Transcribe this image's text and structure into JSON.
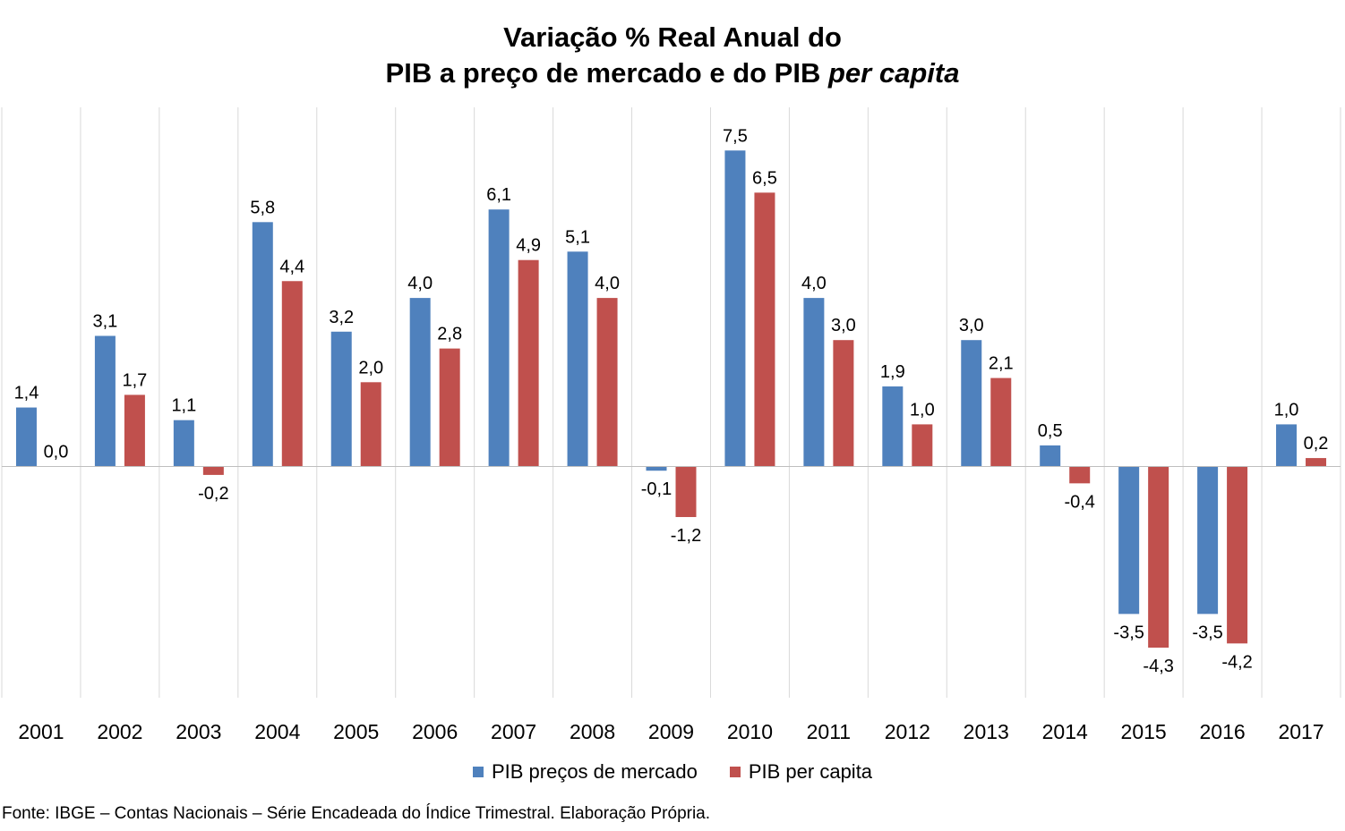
{
  "chart_data": {
    "type": "bar",
    "title_line1": "Variação % Real Anual do",
    "title_line2_prefix": "PIB a preço de mercado e do PIB ",
    "title_line2_italic": "per capita",
    "categories": [
      "2001",
      "2002",
      "2003",
      "2004",
      "2005",
      "2006",
      "2007",
      "2008",
      "2009",
      "2010",
      "2011",
      "2012",
      "2013",
      "2014",
      "2015",
      "2016",
      "2017"
    ],
    "series": [
      {
        "name": "PIB preços de mercado",
        "color": "#4F81BD",
        "values": [
          1.4,
          3.1,
          1.1,
          5.8,
          3.2,
          4.0,
          6.1,
          5.1,
          -0.1,
          7.5,
          4.0,
          1.9,
          3.0,
          0.5,
          -3.5,
          -3.5,
          1.0
        ],
        "labels": [
          "1,4",
          "3,1",
          "1,1",
          "5,8",
          "3,2",
          "4,0",
          "6,1",
          "5,1",
          "-0,1",
          "7,5",
          "4,0",
          "1,9",
          "3,0",
          "0,5",
          "-3,5",
          "-3,5",
          "1,0"
        ]
      },
      {
        "name": "PIB per capita",
        "color": "#C0504D",
        "values": [
          0.0,
          1.7,
          -0.2,
          4.4,
          2.0,
          2.8,
          4.9,
          4.0,
          -1.2,
          6.5,
          3.0,
          1.0,
          2.1,
          -0.4,
          -4.3,
          -4.2,
          0.2
        ],
        "labels": [
          "0,0",
          "1,7",
          "-0,2",
          "4,4",
          "2,0",
          "2,8",
          "4,9",
          "4,0",
          "-1,2",
          "6,5",
          "3,0",
          "1,0",
          "2,1",
          "-0,4",
          "-4,3",
          "-4,2",
          "0,2"
        ]
      }
    ],
    "grid": "vertical category separators",
    "legend_position": "bottom"
  },
  "source_note": "Fonte: IBGE – Contas Nacionais – Série Encadeada do Índice Trimestral. Elaboração Própria."
}
